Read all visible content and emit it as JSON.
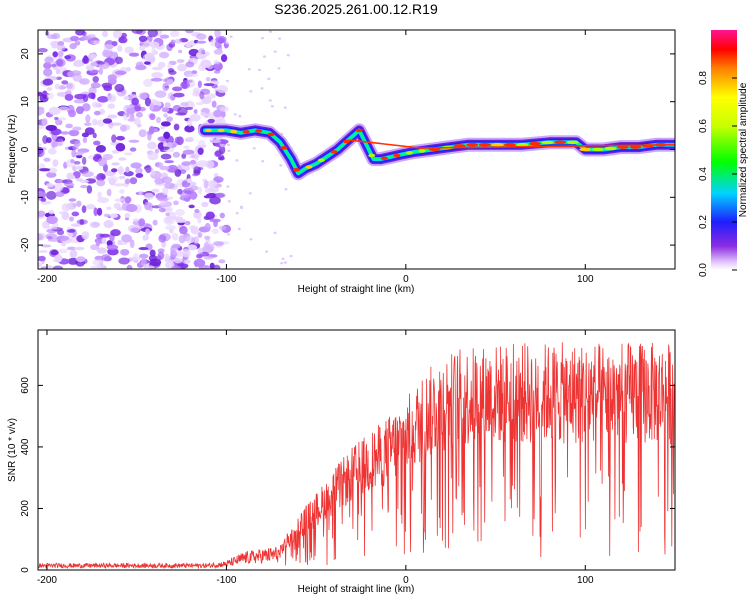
{
  "title": "S236.2025.261.00.12.R19",
  "chart_data": [
    {
      "type": "heatmap",
      "xlabel": "Height of straight line (km)",
      "ylabel": "Frequency (Hz)",
      "xlim": [
        -205,
        150
      ],
      "ylim": [
        -25,
        25
      ],
      "xticks": [
        -200,
        -100,
        0,
        100
      ],
      "yticks": [
        -20,
        -10,
        0,
        10,
        20
      ],
      "colorbar": {
        "label": "Normalized spectral amplitude",
        "range": [
          0,
          1
        ],
        "ticks": [
          0.0,
          0.2,
          0.4,
          0.6,
          0.8
        ]
      },
      "ridge": {
        "x": [
          -112,
          -100,
          -92,
          -84,
          -76,
          -70,
          -64,
          -60,
          -56,
          -50,
          -44,
          -38,
          -32,
          -26,
          -22,
          -18,
          -14,
          -8,
          -2,
          5,
          15,
          25,
          35,
          50,
          65,
          80,
          88,
          95,
          100,
          110,
          120,
          130,
          140,
          150
        ],
        "y": [
          4,
          4,
          3.5,
          4,
          3.5,
          1.5,
          -2,
          -5,
          -4,
          -3,
          -1.5,
          0,
          2,
          4,
          1,
          -2,
          -2,
          -1.5,
          -1,
          -0.5,
          0,
          0.5,
          1,
          1,
          1,
          1.5,
          1.5,
          1.5,
          0,
          0,
          0.5,
          0.5,
          1,
          1
        ]
      }
    },
    {
      "type": "line",
      "xlabel": "Height of straight line (km)",
      "ylabel": "SNR (10 * v/v)",
      "xlim": [
        -205,
        150
      ],
      "ylim": [
        0,
        780
      ],
      "xticks": [
        -200,
        -100,
        0,
        100
      ],
      "yticks": [
        0,
        200,
        400,
        600
      ],
      "envelope": {
        "x": [
          -205,
          -110,
          -100,
          -90,
          -80,
          -70,
          -60,
          -50,
          -40,
          -30,
          -20,
          -10,
          0,
          10,
          20,
          30,
          40,
          60,
          80,
          100,
          120,
          150
        ],
        "y": [
          22,
          22,
          30,
          60,
          70,
          80,
          180,
          250,
          330,
          400,
          450,
          500,
          560,
          640,
          700,
          720,
          730,
          740,
          740,
          740,
          740,
          740
        ]
      }
    }
  ]
}
